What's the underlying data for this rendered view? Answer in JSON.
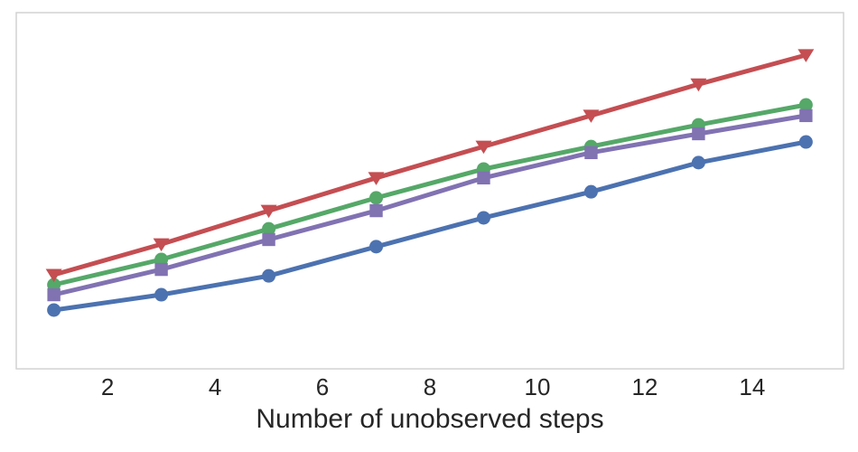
{
  "figure": {
    "background_color": "#ffffff",
    "plot_border_color": "#d2d2d2",
    "text_color": "#262626"
  },
  "chart_data": {
    "type": "line",
    "title": "",
    "xlabel": "Number of unobserved steps",
    "ylabel": "",
    "x": [
      1,
      3,
      5,
      7,
      9,
      11,
      13,
      15
    ],
    "xlim": [
      0.3,
      15.7
    ],
    "ylim": [
      0,
      1
    ],
    "x_ticks": [
      2,
      4,
      6,
      8,
      10,
      12,
      14
    ],
    "x_tick_labels": [
      "2",
      "4",
      "6",
      "8",
      "10",
      "12",
      "14"
    ],
    "y_ticks_visible": false,
    "grid": false,
    "legend_position": "none",
    "marker_size": 7.5,
    "line_width": 5,
    "series": [
      {
        "name": "blue-circle",
        "marker": "circle",
        "color": "#4C72B0",
        "values": [
          0.165,
          0.208,
          0.261,
          0.343,
          0.424,
          0.497,
          0.579,
          0.637
        ]
      },
      {
        "name": "green-circle",
        "marker": "circle",
        "color": "#55A868",
        "values": [
          0.236,
          0.307,
          0.393,
          0.48,
          0.561,
          0.624,
          0.685,
          0.741
        ]
      },
      {
        "name": "purple-square",
        "marker": "square",
        "color": "#8172B2",
        "values": [
          0.208,
          0.279,
          0.363,
          0.444,
          0.536,
          0.607,
          0.66,
          0.711
        ]
      },
      {
        "name": "red-triangle-down",
        "marker": "triangle-down",
        "color": "#C44E52",
        "values": [
          0.264,
          0.35,
          0.444,
          0.536,
          0.624,
          0.711,
          0.799,
          0.881
        ]
      }
    ]
  }
}
